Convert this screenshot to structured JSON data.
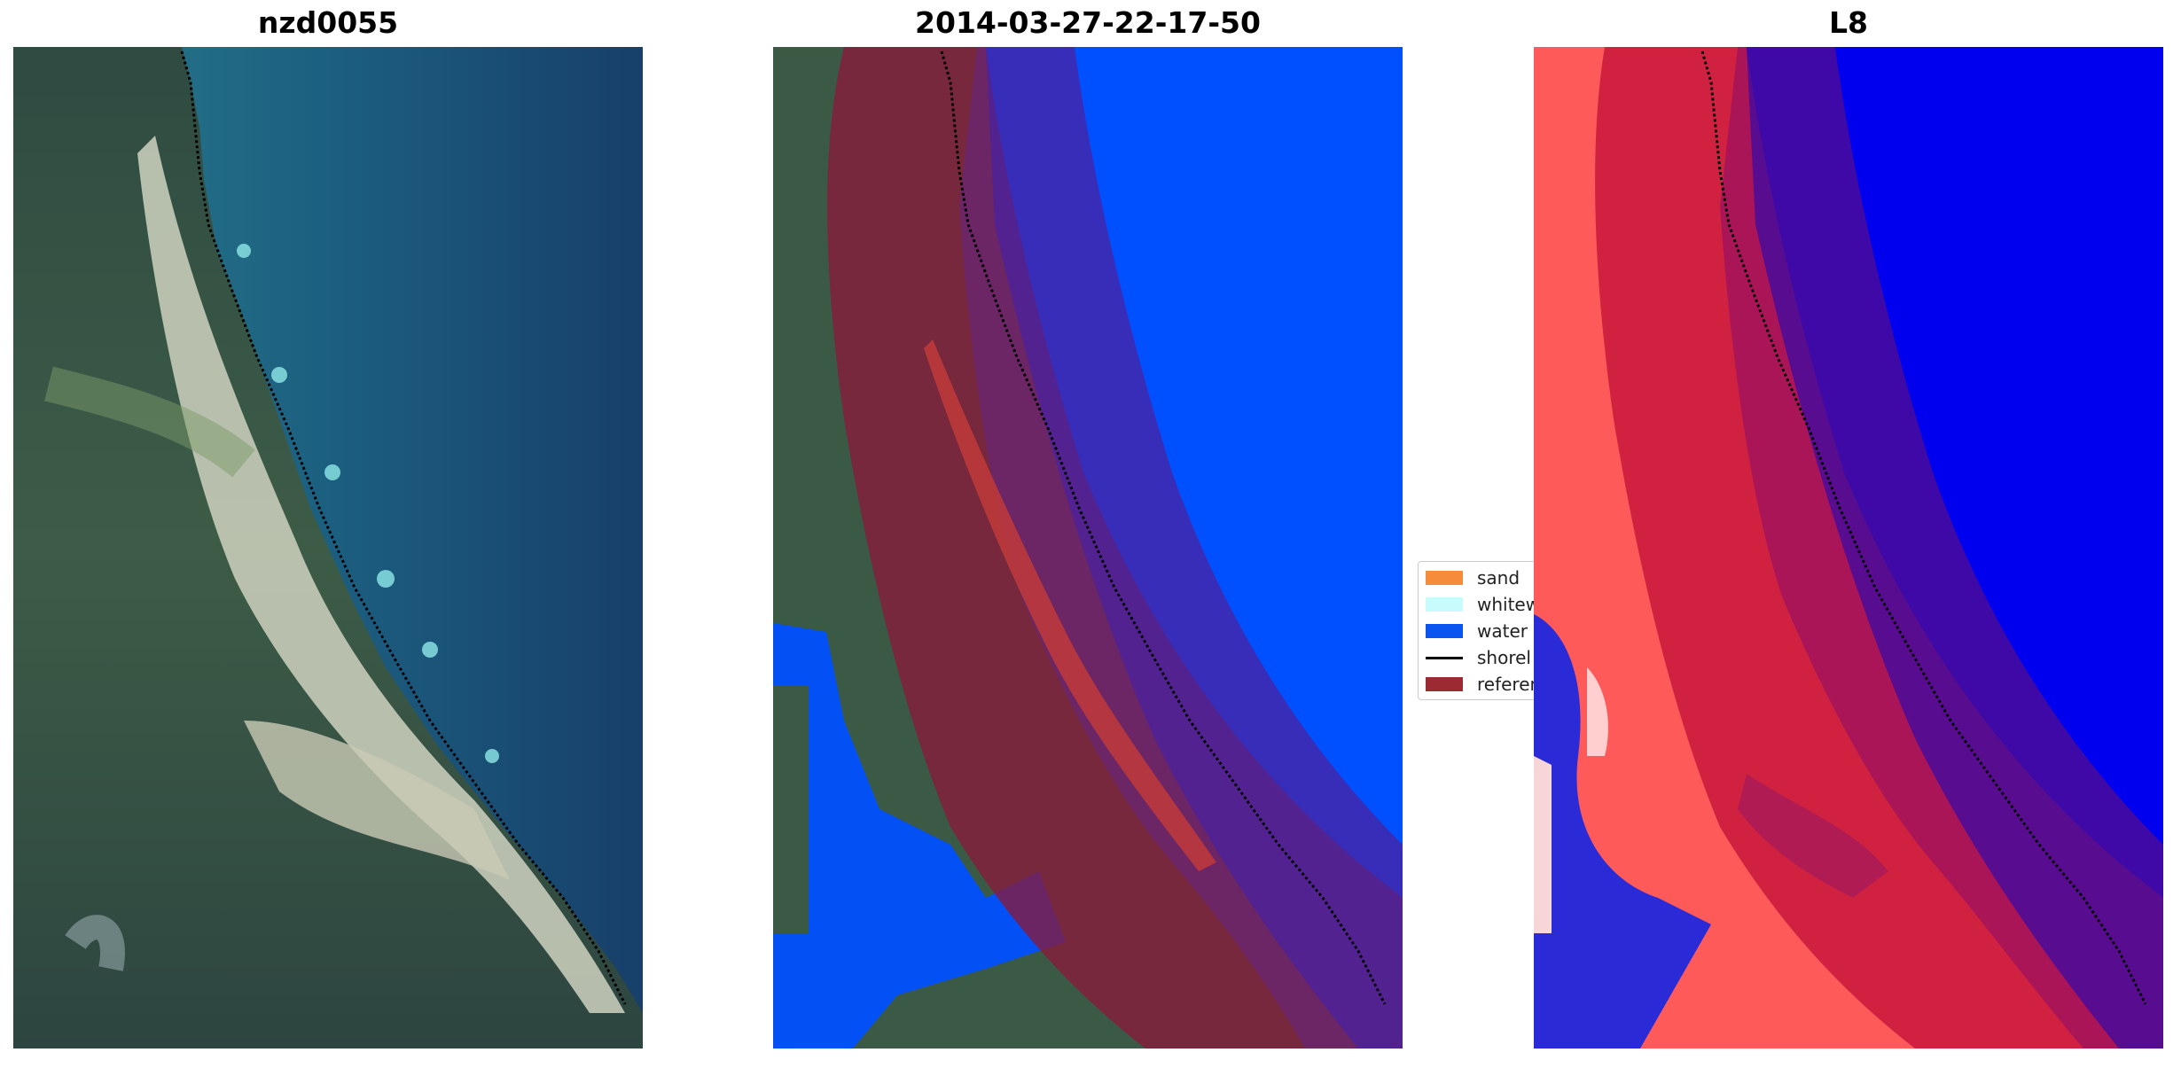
{
  "panels": [
    {
      "title": "nzd0055"
    },
    {
      "title": "2014-03-27-22-17-50"
    },
    {
      "title": "L8"
    }
  ],
  "legend": {
    "items": [
      {
        "label": "sand",
        "color": "#f48c3a",
        "kind": "patch"
      },
      {
        "label": "whitew",
        "color": "#c8fbfb",
        "kind": "patch"
      },
      {
        "label": "water",
        "color": "#0a55f0",
        "kind": "patch"
      },
      {
        "label": "shorel",
        "color": "#000000",
        "kind": "line"
      },
      {
        "label": "referen",
        "color": "#9b2a32",
        "kind": "patch"
      }
    ]
  },
  "colors": {
    "ocean": "#1a5a7a",
    "land": "#3a5a46",
    "water_class": "#0050ff",
    "reference_zone": "#8b1a3a",
    "index_high": "#ff3b3b",
    "index_low": "#0000ff"
  }
}
